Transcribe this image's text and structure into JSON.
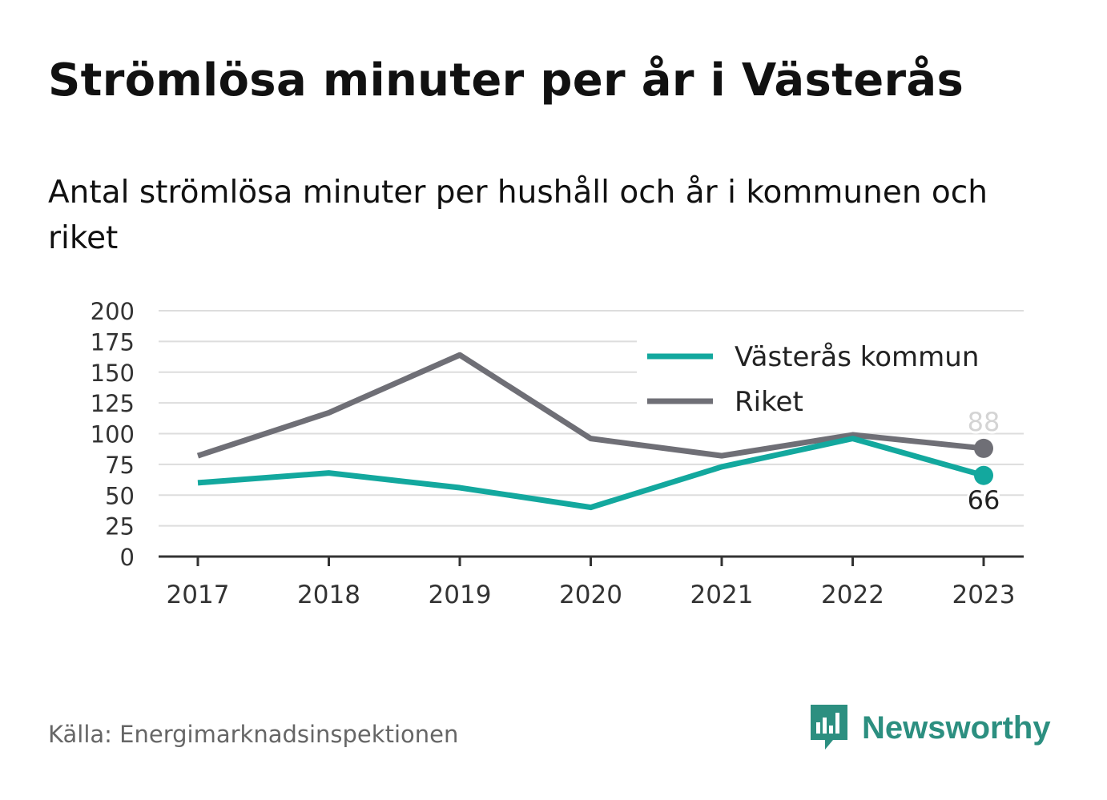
{
  "header": {
    "title": "Strömlösa minuter per år i Västerås",
    "subtitle": "Antal strömlösa minuter per hushåll och år i kommunen och riket"
  },
  "footer": {
    "source": "Källa: Energimarknadsinspektionen",
    "brand": "Newsworthy"
  },
  "chart_data": {
    "type": "line",
    "title": "Strömlösa minuter per år i Västerås",
    "subtitle": "Antal strömlösa minuter per hushåll och år i kommunen och riket",
    "x": [
      "2017",
      "2018",
      "2019",
      "2020",
      "2021",
      "2022",
      "2023"
    ],
    "series": [
      {
        "name": "Västerås kommun",
        "color": "#13a89e",
        "values": [
          60,
          68,
          56,
          40,
          73,
          96,
          66
        ],
        "end_label": "66"
      },
      {
        "name": "Riket",
        "color": "#6f6f76",
        "values": [
          82,
          117,
          164,
          96,
          82,
          99,
          88
        ],
        "end_label": "88"
      }
    ],
    "ylim": [
      0,
      200
    ],
    "yticks": [
      0,
      25,
      50,
      75,
      100,
      125,
      150,
      175,
      200
    ],
    "xlabel": "",
    "ylabel": "",
    "grid": true,
    "legend": "top-right"
  },
  "colors": {
    "grid": "#dddddd",
    "axis": "#333333",
    "tick_text": "#333333",
    "brand": "#2c8f80",
    "source_text": "#666666"
  },
  "icons": {
    "brand": "newsworthy-logo-icon"
  }
}
